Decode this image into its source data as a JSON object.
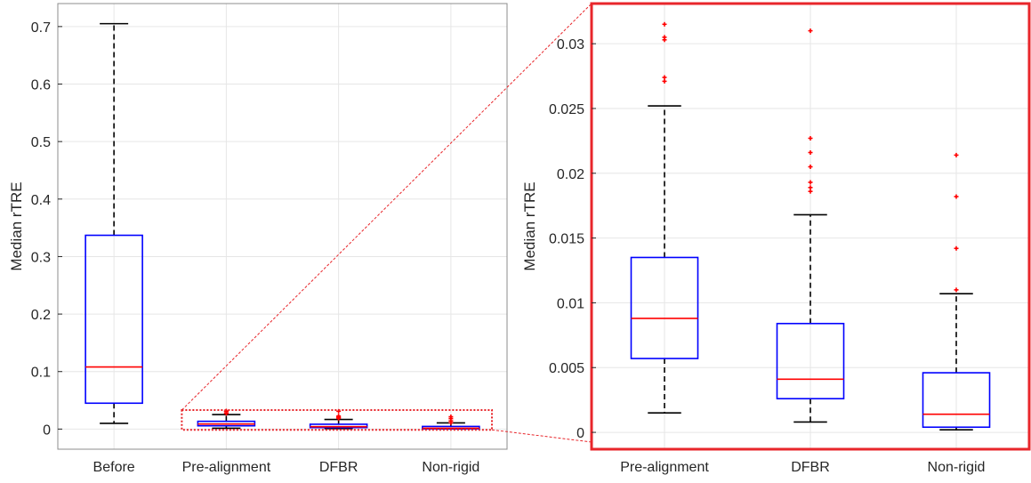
{
  "colors": {
    "box": "#0000ff",
    "median": "#ff0000",
    "outlier": "#ff0000",
    "whisker": "#000000",
    "grid": "#e6e6e6",
    "axis": "#8c8c8c",
    "zoom": "#e8262b"
  },
  "chart_data": [
    {
      "type": "box",
      "ylabel": "Median rTRE",
      "xlabel": "",
      "ylim": [
        -0.035,
        0.74
      ],
      "yticks": [
        0,
        0.1,
        0.2,
        0.3,
        0.4,
        0.5,
        0.6,
        0.7
      ],
      "ytick_labels": [
        "0",
        "0.1",
        "0.2",
        "0.3",
        "0.4",
        "0.5",
        "0.6",
        "0.7"
      ],
      "grid": true,
      "categories": [
        "Before",
        "Pre-alignment",
        "DFBR",
        "Non-rigid"
      ],
      "boxes": [
        {
          "q1": 0.045,
          "median": 0.108,
          "q3": 0.337,
          "whisker_low": 0.01,
          "whisker_high": 0.705,
          "outliers": []
        },
        {
          "q1": 0.0057,
          "median": 0.0088,
          "q3": 0.0135,
          "whisker_low": 0.0015,
          "whisker_high": 0.0252,
          "outliers": [
            0.0271,
            0.0274,
            0.0303,
            0.0305,
            0.0315
          ]
        },
        {
          "q1": 0.0026,
          "median": 0.0041,
          "q3": 0.0084,
          "whisker_low": 0.0008,
          "whisker_high": 0.0168,
          "outliers": [
            0.0186,
            0.0189,
            0.0193,
            0.0205,
            0.0216,
            0.0227,
            0.031
          ]
        },
        {
          "q1": 0.0004,
          "median": 0.0014,
          "q3": 0.0046,
          "whisker_low": 0.0002,
          "whisker_high": 0.0107,
          "outliers": [
            0.011,
            0.0142,
            0.0182,
            0.0214
          ]
        }
      ]
    },
    {
      "type": "box",
      "ylabel": "Median rTRE",
      "xlabel": "",
      "ylim": [
        -0.0013,
        0.0331
      ],
      "yticks": [
        0,
        0.005,
        0.01,
        0.015,
        0.02,
        0.025,
        0.03
      ],
      "ytick_labels": [
        "0",
        "0.005",
        "0.01",
        "0.015",
        "0.02",
        "0.025",
        "0.03"
      ],
      "grid": true,
      "categories": [
        "Pre-alignment",
        "DFBR",
        "Non-rigid"
      ],
      "boxes": [
        {
          "q1": 0.0057,
          "median": 0.0088,
          "q3": 0.0135,
          "whisker_low": 0.0015,
          "whisker_high": 0.0252,
          "outliers": [
            0.0271,
            0.0274,
            0.0303,
            0.0305,
            0.0315
          ]
        },
        {
          "q1": 0.0026,
          "median": 0.0041,
          "q3": 0.0084,
          "whisker_low": 0.0008,
          "whisker_high": 0.0168,
          "outliers": [
            0.0186,
            0.0189,
            0.0193,
            0.0205,
            0.0216,
            0.0227,
            0.031
          ]
        },
        {
          "q1": 0.0004,
          "median": 0.0014,
          "q3": 0.0046,
          "whisker_low": 0.0002,
          "whisker_high": 0.0107,
          "outliers": [
            0.011,
            0.0142,
            0.0182,
            0.0214
          ]
        }
      ]
    }
  ],
  "zoom_inset": {
    "source_panel": 0,
    "target_panel": 1,
    "note": ""
  }
}
